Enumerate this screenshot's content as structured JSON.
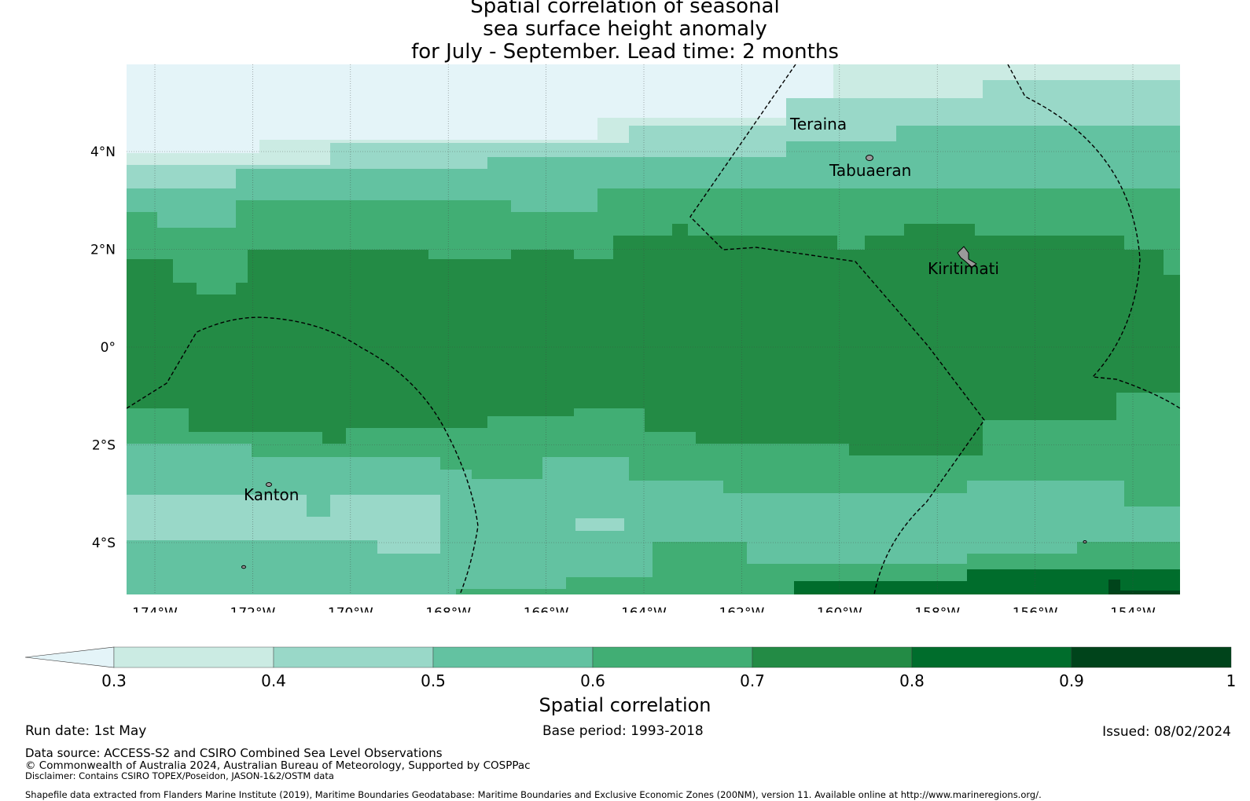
{
  "title": {
    "line1": "Spatial correlation of seasonal",
    "line2": "sea surface height anomaly",
    "line3": "for July - September. Lead time: 2 months"
  },
  "colors": {
    "c_lt03": "#e4f4f8",
    "c_03_04": "#cbebe3",
    "c_04_05": "#99d8c8",
    "c_05_06": "#63c2a1",
    "c_06_07": "#41ae74",
    "c_07_08": "#238b45",
    "c_08_09": "#006d2c",
    "c_09_10": "#00441b",
    "grid": "#444444",
    "eez": "#000000",
    "land": "#9a9a9a"
  },
  "map": {
    "lon_labels": [
      "174°W",
      "172°W",
      "170°W",
      "168°W",
      "166°W",
      "164°W",
      "162°W",
      "160°W",
      "158°W",
      "156°W",
      "154°W"
    ],
    "lat_labels": [
      "4°N",
      "2°N",
      "0°",
      "2°S",
      "4°S"
    ],
    "places": {
      "teraina": "Teraina",
      "tabuaeran": "Tabuaeran",
      "kiritimati": "Kiritimati",
      "kanton": "Kanton"
    }
  },
  "colorbar": {
    "ticks": [
      "0.3",
      "0.4",
      "0.5",
      "0.6",
      "0.7",
      "0.8",
      "0.9",
      "1"
    ],
    "label": "Spatial correlation"
  },
  "footer": {
    "run_date": "Run date: 1st May",
    "base_period": "Base period: 1993-2018",
    "issued": "Issued: 08/02/2024",
    "data_source": "Data source: ACCESS-S2 and CSIRO Combined Sea Level Observations",
    "copyright": "© Commonwealth of Australia 2024, Australian Bureau of Meteorology, Supported by COSPPac",
    "disclaimer": "Disclaimer: Contains CSIRO TOPEX/Poseidon, JASON-1&2/OSTM data",
    "shapefile": "Shapefile data extracted from Flanders Marine Institute (2019), Maritime Boundaries Geodatabase: Maritime Boundaries and Exclusive Economic Zones (200NM), version 11. Available online at http://www.marineregions.org/."
  }
}
